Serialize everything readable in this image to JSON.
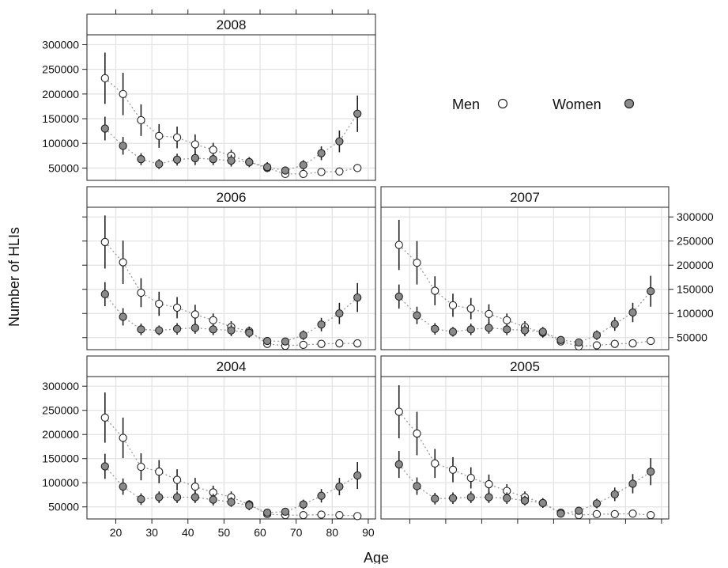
{
  "chart_data": {
    "type": "scatter",
    "ylabel": "Number of HLIs",
    "xlabel": "Age",
    "x_ticks": [
      20,
      30,
      40,
      50,
      60,
      70,
      80,
      90
    ],
    "y_ticks": [
      50000,
      100000,
      150000,
      200000,
      250000,
      300000
    ],
    "x_range": [
      12,
      92
    ],
    "y_range": [
      25000,
      320000
    ],
    "ages": [
      17,
      22,
      27,
      32,
      37,
      42,
      47,
      52,
      57,
      62,
      67,
      72,
      77,
      82,
      87
    ],
    "legend": {
      "placement": "top-right",
      "items": [
        {
          "label": "Men",
          "fill": "#ffffff"
        },
        {
          "label": "Women",
          "fill": "#8a8a8a"
        }
      ]
    },
    "panels": [
      {
        "year": "2008",
        "men": [
          232000,
          200000,
          147000,
          115000,
          112000,
          98000,
          87000,
          75000,
          62000,
          50000,
          38000,
          38000,
          42000,
          43000,
          50000
        ],
        "men_err": [
          52000,
          43000,
          32000,
          24000,
          22000,
          20000,
          14000,
          12000,
          10000,
          8000,
          7000,
          6000,
          6000,
          6000,
          8000
        ],
        "women": [
          130000,
          95000,
          68000,
          58000,
          67000,
          70000,
          68000,
          65000,
          62000,
          52000,
          45000,
          56000,
          80000,
          104000,
          160000
        ],
        "women_err": [
          24000,
          18000,
          12000,
          10000,
          12000,
          14000,
          12000,
          12000,
          10000,
          10000,
          8000,
          10000,
          14000,
          22000,
          37000
        ]
      },
      {
        "year": "2006",
        "men": [
          248000,
          206000,
          143000,
          120000,
          112000,
          98000,
          86000,
          72000,
          63000,
          37000,
          33000,
          35000,
          37000,
          38000,
          38000
        ],
        "men_err": [
          55000,
          45000,
          30000,
          25000,
          22000,
          20000,
          14000,
          12000,
          10000,
          6000,
          5000,
          5000,
          5000,
          5000,
          6000
        ],
        "women": [
          140000,
          93000,
          67000,
          65000,
          68000,
          70000,
          67000,
          65000,
          60000,
          43000,
          42000,
          55000,
          77000,
          100000,
          133000
        ],
        "women_err": [
          25000,
          18000,
          12000,
          10000,
          12000,
          12000,
          12000,
          12000,
          10000,
          8000,
          8000,
          10000,
          14000,
          22000,
          30000
        ]
      },
      {
        "year": "2007",
        "men": [
          242000,
          205000,
          147000,
          117000,
          110000,
          99000,
          86000,
          72000,
          60000,
          42000,
          32000,
          34000,
          37000,
          38000,
          43000
        ],
        "men_err": [
          52000,
          45000,
          30000,
          24000,
          22000,
          20000,
          14000,
          12000,
          10000,
          7000,
          5000,
          5000,
          5000,
          6000,
          7000
        ],
        "women": [
          135000,
          96000,
          68000,
          62000,
          67000,
          70000,
          67000,
          65000,
          62000,
          45000,
          40000,
          55000,
          78000,
          102000,
          146000
        ],
        "women_err": [
          25000,
          18000,
          12000,
          10000,
          12000,
          12000,
          12000,
          12000,
          10000,
          8000,
          8000,
          10000,
          14000,
          20000,
          32000
        ]
      },
      {
        "year": "2004",
        "men": [
          235000,
          193000,
          133000,
          123000,
          106000,
          92000,
          80000,
          70000,
          55000,
          35000,
          33000,
          33000,
          34000,
          33000,
          31000
        ],
        "men_err": [
          52000,
          42000,
          28000,
          24000,
          22000,
          18000,
          14000,
          12000,
          9000,
          6000,
          5000,
          5000,
          5000,
          5000,
          5000
        ],
        "women": [
          134000,
          92000,
          66000,
          70000,
          70000,
          70000,
          65000,
          60000,
          53000,
          38000,
          40000,
          55000,
          73000,
          92000,
          115000
        ],
        "women_err": [
          26000,
          17000,
          12000,
          12000,
          12000,
          12000,
          12000,
          10000,
          10000,
          8000,
          8000,
          10000,
          14000,
          18000,
          28000
        ]
      },
      {
        "year": "2005",
        "men": [
          247000,
          202000,
          140000,
          127000,
          110000,
          97000,
          83000,
          70000,
          58000,
          38000,
          33000,
          35000,
          35000,
          36000,
          33000
        ],
        "men_err": [
          55000,
          45000,
          30000,
          26000,
          22000,
          20000,
          14000,
          12000,
          10000,
          6000,
          5000,
          5000,
          5000,
          5000,
          5000
        ],
        "women": [
          138000,
          93000,
          67000,
          68000,
          70000,
          70000,
          68000,
          63000,
          58000,
          36000,
          42000,
          57000,
          76000,
          98000,
          123000
        ],
        "women_err": [
          28000,
          18000,
          12000,
          12000,
          12000,
          12000,
          12000,
          10000,
          10000,
          7000,
          8000,
          10000,
          14000,
          20000,
          28000
        ]
      }
    ]
  }
}
